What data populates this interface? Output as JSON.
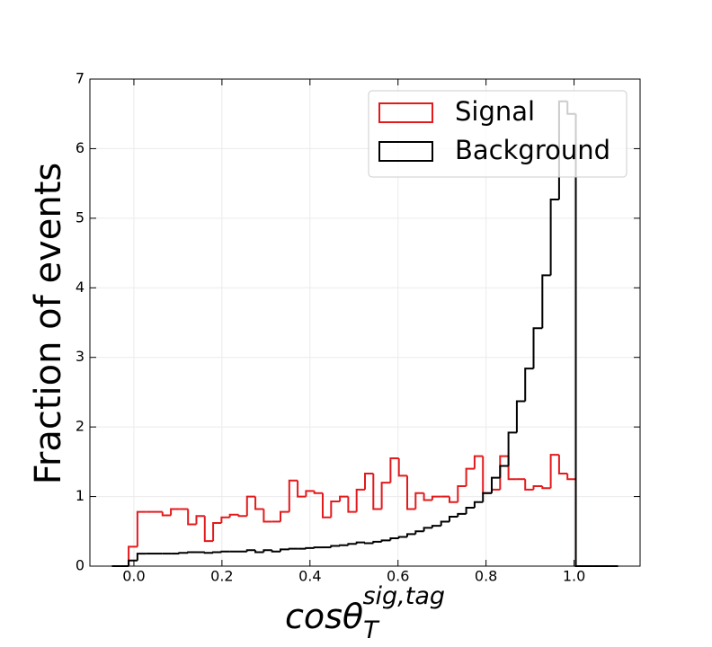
{
  "chart_data": {
    "type": "histogram",
    "ylabel": "Fraction of events",
    "xlabel": {
      "base": "cosθ",
      "sub": "T",
      "sup": "sig,tag"
    },
    "bins": [
      -0.05,
      -0.031,
      -0.012,
      0.008,
      0.027,
      0.046,
      0.065,
      0.084,
      0.103,
      0.123,
      0.142,
      0.161,
      0.18,
      0.199,
      0.218,
      0.238,
      0.257,
      0.276,
      0.295,
      0.314,
      0.333,
      0.353,
      0.372,
      0.391,
      0.41,
      0.429,
      0.448,
      0.468,
      0.487,
      0.506,
      0.525,
      0.544,
      0.563,
      0.583,
      0.602,
      0.621,
      0.64,
      0.659,
      0.678,
      0.698,
      0.717,
      0.736,
      0.755,
      0.774,
      0.793,
      0.813,
      0.832,
      0.851,
      0.87,
      0.889,
      0.908,
      0.928,
      0.947,
      0.966,
      0.985,
      1.004,
      1.023,
      1.042,
      1.062,
      1.081,
      1.1
    ],
    "series": [
      {
        "name": "Signal",
        "color": "#e31a1c",
        "values": [
          0,
          0,
          0.28,
          0.78,
          0.78,
          0.78,
          0.73,
          0.82,
          0.82,
          0.6,
          0.72,
          0.36,
          0.62,
          0.7,
          0.74,
          0.72,
          1.0,
          0.82,
          0.64,
          0.64,
          0.78,
          1.23,
          1.0,
          1.08,
          1.05,
          0.7,
          0.93,
          1.0,
          0.78,
          1.1,
          1.33,
          0.82,
          1.2,
          1.55,
          1.3,
          0.82,
          1.05,
          0.95,
          1.0,
          1.0,
          0.92,
          1.15,
          1.4,
          1.58,
          1.05,
          1.1,
          1.58,
          1.25,
          1.25,
          1.1,
          1.15,
          1.12,
          1.6,
          1.33,
          1.25,
          0,
          0,
          0,
          0,
          0
        ]
      },
      {
        "name": "Background",
        "color": "#000000",
        "values": [
          0,
          0,
          0.08,
          0.18,
          0.18,
          0.18,
          0.18,
          0.18,
          0.19,
          0.2,
          0.2,
          0.19,
          0.2,
          0.21,
          0.21,
          0.21,
          0.23,
          0.2,
          0.23,
          0.21,
          0.24,
          0.25,
          0.25,
          0.26,
          0.27,
          0.27,
          0.29,
          0.3,
          0.32,
          0.34,
          0.33,
          0.35,
          0.37,
          0.4,
          0.42,
          0.46,
          0.5,
          0.55,
          0.58,
          0.64,
          0.71,
          0.75,
          0.84,
          0.92,
          1.05,
          1.27,
          1.44,
          1.92,
          2.37,
          2.84,
          3.42,
          4.18,
          5.27,
          6.68,
          6.5,
          0,
          0,
          0,
          0,
          0
        ]
      }
    ],
    "xlim": [
      -0.1,
      1.15
    ],
    "ylim": [
      0,
      7
    ],
    "xticks": [
      {
        "value": 0,
        "label": "0.0"
      },
      0.2,
      0.4,
      0.6,
      0.8,
      {
        "value": 1,
        "label": "1.0"
      }
    ],
    "yticks": [
      0,
      1,
      2,
      3,
      4,
      5,
      6,
      7
    ],
    "grid": true,
    "legend": "upper right"
  }
}
